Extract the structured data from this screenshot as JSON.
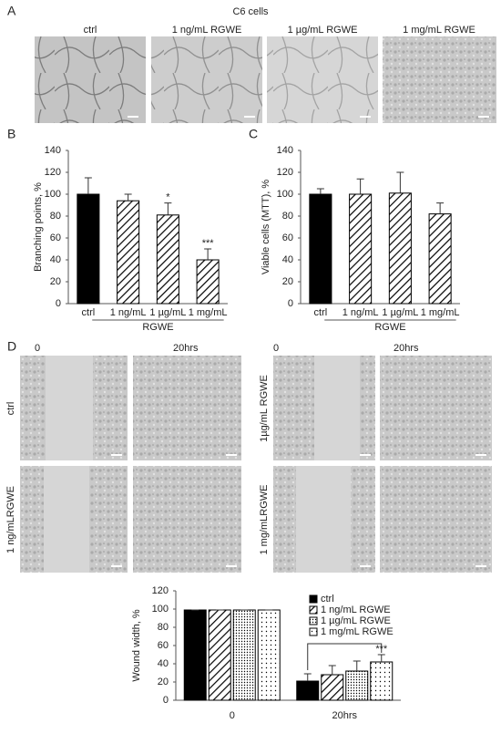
{
  "panel_labels": [
    "A",
    "B",
    "C",
    "D"
  ],
  "panel_a": {
    "title": "C6 cells",
    "image_labels": [
      "ctrl",
      "1 ng/mL RGWE",
      "1 µg/mL RGWE",
      "1 mg/mL RGWE"
    ]
  },
  "panel_d": {
    "left_time_labels": [
      "0",
      "20hrs"
    ],
    "right_time_labels": [
      "0",
      "20hrs"
    ],
    "left_row_labels": [
      "ctrl",
      "1 ng/mLRGWE"
    ],
    "right_row_labels": [
      "1µg/mL RGWE",
      "1 mg/mLRGWE"
    ]
  },
  "chart_data": [
    {
      "type": "bar",
      "y_label": "Branching points, %",
      "categories": [
        "ctrl",
        "1 ng/mL",
        "1 µg/mL",
        "1 mg/mL"
      ],
      "values": [
        100,
        94,
        81,
        40
      ],
      "errors": [
        15,
        6,
        11,
        10
      ],
      "colors": [
        "#000000",
        "#000000",
        "#000000",
        "#000000"
      ],
      "patterns": [
        "solid",
        "hatch",
        "hatch",
        "hatch"
      ],
      "group_label": "RGWE",
      "annotations": [
        {
          "index": 2,
          "text": "*"
        },
        {
          "index": 3,
          "text": "***"
        }
      ],
      "ylim": [
        0,
        140
      ],
      "yticks": [
        0,
        20,
        40,
        60,
        80,
        100,
        120,
        140
      ]
    },
    {
      "type": "bar",
      "y_label": "Viable cells (MTT), %",
      "categories": [
        "ctrl",
        "1 ng/mL",
        "1 µg/mL",
        "1 mg/mL"
      ],
      "values": [
        100,
        100,
        101,
        82
      ],
      "errors": [
        5,
        14,
        19,
        10
      ],
      "colors": [
        "#000000",
        "#000000",
        "#000000",
        "#000000"
      ],
      "patterns": [
        "solid",
        "hatch",
        "hatch",
        "hatch"
      ],
      "group_label": "RGWE",
      "annotations": [],
      "ylim": [
        0,
        140
      ],
      "yticks": [
        0,
        20,
        40,
        60,
        80,
        100,
        120,
        140
      ]
    },
    {
      "type": "grouped_bar",
      "y_label": "Wound width, %",
      "categories": [
        "0",
        "20hrs"
      ],
      "series": [
        {
          "name": "ctrl",
          "color": "#000000",
          "pattern": "solid",
          "values": [
            99,
            21
          ],
          "errors": [
            0,
            8
          ]
        },
        {
          "name": "1 ng/mL RGWE",
          "color": "#000000",
          "pattern": "hatch",
          "values": [
            99,
            28
          ],
          "errors": [
            0,
            10
          ]
        },
        {
          "name": "1 µg/mL RGWE",
          "color": "#000000",
          "pattern": "dots",
          "values": [
            99,
            32
          ],
          "errors": [
            0,
            11
          ]
        },
        {
          "name": "1 mg/mL RGWE",
          "color": "#000000",
          "pattern": "sparse-dots",
          "values": [
            99,
            42
          ],
          "errors": [
            0,
            8
          ]
        }
      ],
      "annotations": [
        {
          "series": 3,
          "index": 1,
          "text": "***"
        }
      ],
      "ylim": [
        0,
        120
      ],
      "yticks": [
        0,
        20,
        40,
        60,
        80,
        100,
        120
      ]
    }
  ]
}
